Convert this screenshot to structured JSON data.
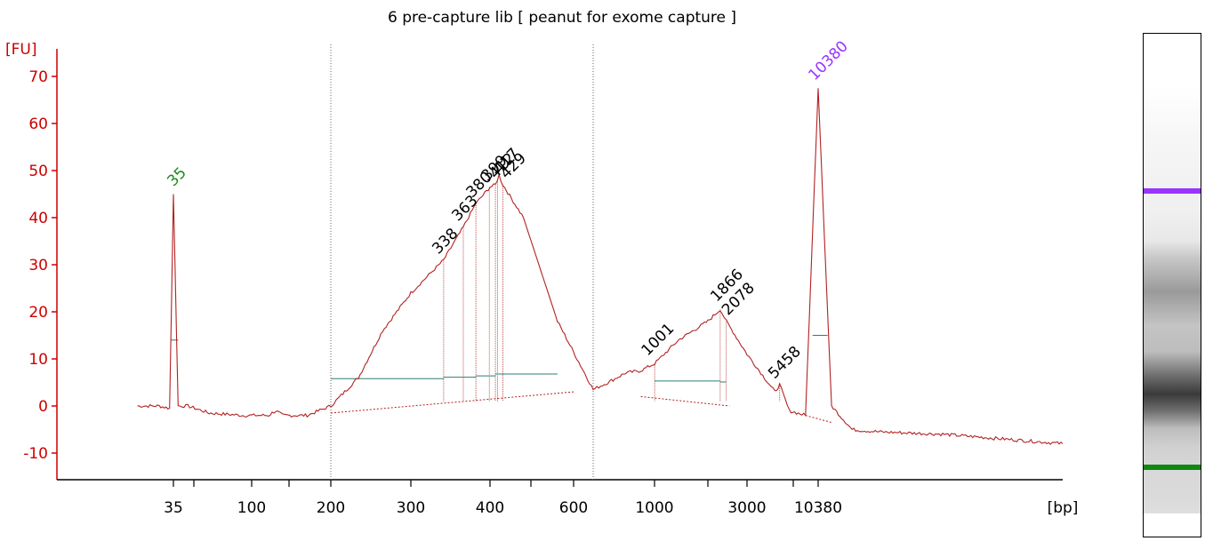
{
  "chart_data": {
    "type": "line",
    "title": "6 pre-capture lib  [ peanut for exome capture ]",
    "ylabel": "[FU]",
    "xlabel": "[bp]",
    "ylim": [
      -15,
      72
    ],
    "yticks": [
      70,
      60,
      50,
      40,
      30,
      20,
      10,
      0,
      -10
    ],
    "xtick_labels": [
      "35",
      "100",
      "200",
      "300",
      "400",
      "600",
      "1000",
      "3000",
      "10380"
    ],
    "x_minor_ticks": [
      50,
      150,
      500,
      1500,
      7000
    ],
    "region_bounds_bp": [
      200,
      625
    ],
    "series": [
      {
        "x": [
          15,
          25,
          32,
          35,
          38,
          45,
          60,
          90,
          120,
          130,
          140,
          170,
          200,
          230,
          260,
          300,
          338,
          363,
          380,
          400,
          412,
          420,
          429,
          480,
          560,
          625,
          700,
          800,
          900,
          1001,
          1200,
          1500,
          1866,
          2078,
          3000,
          5000,
          5458,
          6500,
          8500,
          10380,
          12000,
          15000,
          20000,
          40000,
          70000
        ],
        "y": [
          0,
          0,
          -0.5,
          45,
          0,
          0,
          -1.5,
          -2,
          -2,
          -1,
          -2,
          -2,
          0,
          6,
          16,
          24,
          31,
          38,
          43,
          46.5,
          47,
          49,
          47,
          40,
          18,
          3.5,
          5,
          7,
          7.5,
          9,
          14,
          18,
          20.5,
          18,
          11,
          3,
          4.5,
          -1,
          -2,
          67.5,
          0,
          -5,
          -5.5,
          -6,
          -8
        ]
      }
    ],
    "peaks": [
      {
        "label": "35",
        "bp": 35,
        "fu": 45,
        "color": "#1a8a1a"
      },
      {
        "label": "338",
        "bp": 338,
        "fu": 31,
        "color": "#000000"
      },
      {
        "label": "363",
        "bp": 363,
        "fu": 38,
        "color": "#000000"
      },
      {
        "label": "380",
        "bp": 380,
        "fu": 43,
        "color": "#000000"
      },
      {
        "label": "399",
        "bp": 399,
        "fu": 46.5,
        "color": "#000000"
      },
      {
        "label": "412",
        "bp": 412,
        "fu": 47,
        "color": "#000000"
      },
      {
        "label": "417",
        "bp": 417,
        "fu": 48,
        "color": "#000000"
      },
      {
        "label": "429",
        "bp": 429,
        "fu": 47,
        "color": "#000000"
      },
      {
        "label": "1001",
        "bp": 1001,
        "fu": 9,
        "color": "#000000"
      },
      {
        "label": "1866",
        "bp": 1866,
        "fu": 20.5,
        "color": "#000000"
      },
      {
        "label": "2078",
        "bp": 2078,
        "fu": 18,
        "color": "#000000"
      },
      {
        "label": "5458",
        "bp": 5458,
        "fu": 4.5,
        "color": "#000000"
      },
      {
        "label": "10380",
        "bp": 10380,
        "fu": 67.5,
        "color": "#9933ff"
      }
    ],
    "grid": false,
    "colors": {
      "trace": "#b22222",
      "axis": "#cc0000",
      "baseline": "#2e7d74",
      "lower_marker": "#1a8a1a",
      "upper_marker": "#9933ff"
    }
  },
  "gel": {
    "upper_marker_color": "#9933ff",
    "lower_marker_color": "#118811",
    "upper_marker_level": 0.03,
    "lower_marker_level": 0.86
  }
}
